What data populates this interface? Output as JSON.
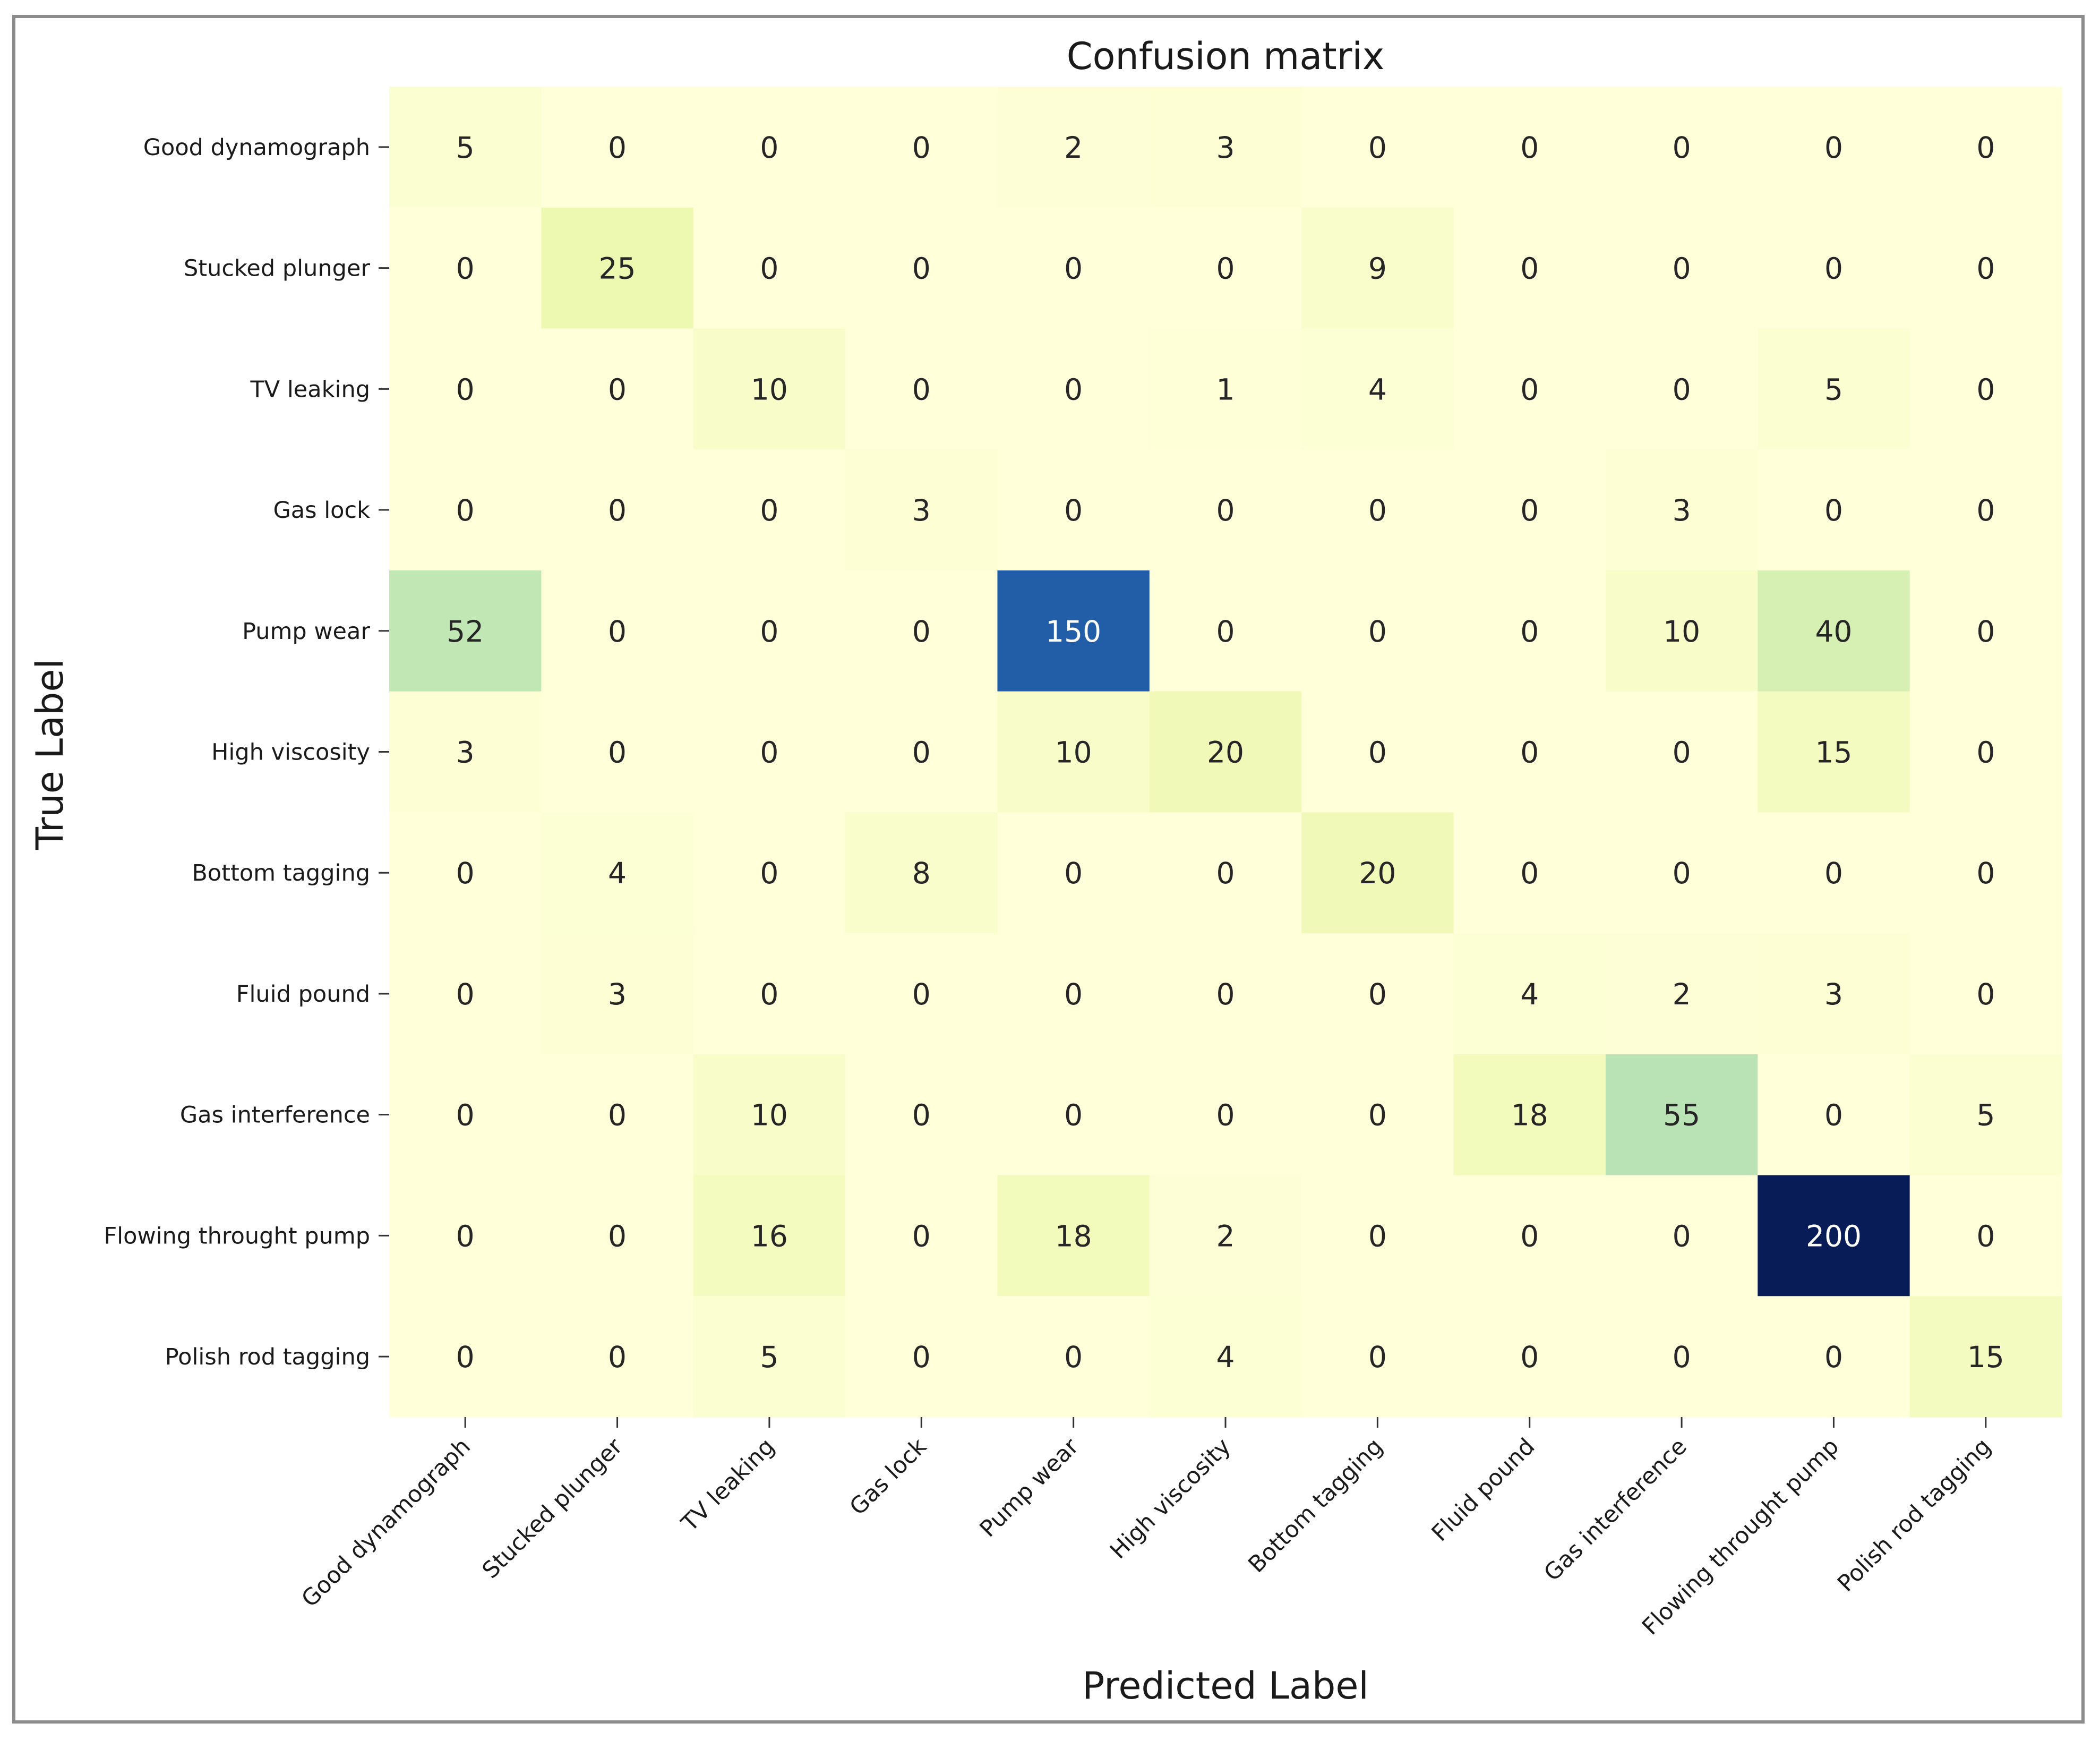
{
  "chart_data": {
    "type": "heatmap",
    "title": "Confusion matrix",
    "xlabel": "Predicted Label",
    "ylabel": "True Label",
    "x_categories": [
      "Good dynamograph",
      "Stucked plunger",
      "TV leaking",
      "Gas lock",
      "Pump wear",
      "High viscosity",
      "Bottom tagging",
      "Fluid pound",
      "Gas interference",
      "Flowing throught pump",
      "Polish rod tagging"
    ],
    "y_categories": [
      "Good dynamograph",
      "Stucked plunger",
      "TV leaking",
      "Gas lock",
      "Pump wear",
      "High viscosity",
      "Bottom tagging",
      "Fluid pound",
      "Gas interference",
      "Flowing throught pump",
      "Polish rod tagging"
    ],
    "matrix": [
      [
        5,
        0,
        0,
        0,
        2,
        3,
        0,
        0,
        0,
        0,
        0
      ],
      [
        0,
        25,
        0,
        0,
        0,
        0,
        9,
        0,
        0,
        0,
        0
      ],
      [
        0,
        0,
        10,
        0,
        0,
        1,
        4,
        0,
        0,
        5,
        0
      ],
      [
        0,
        0,
        0,
        3,
        0,
        0,
        0,
        0,
        3,
        0,
        0
      ],
      [
        52,
        0,
        0,
        0,
        150,
        0,
        0,
        0,
        10,
        40,
        0
      ],
      [
        3,
        0,
        0,
        0,
        10,
        20,
        0,
        0,
        0,
        15,
        0
      ],
      [
        0,
        4,
        0,
        8,
        0,
        0,
        20,
        0,
        0,
        0,
        0
      ],
      [
        0,
        3,
        0,
        0,
        0,
        0,
        0,
        4,
        2,
        3,
        0
      ],
      [
        0,
        0,
        10,
        0,
        0,
        0,
        0,
        18,
        55,
        0,
        5
      ],
      [
        0,
        0,
        16,
        0,
        18,
        2,
        0,
        0,
        0,
        200,
        0
      ],
      [
        0,
        0,
        5,
        0,
        0,
        4,
        0,
        0,
        0,
        0,
        15
      ]
    ],
    "colormap": "YlGnBu",
    "value_range": [
      0,
      200
    ],
    "colorbar": false
  }
}
